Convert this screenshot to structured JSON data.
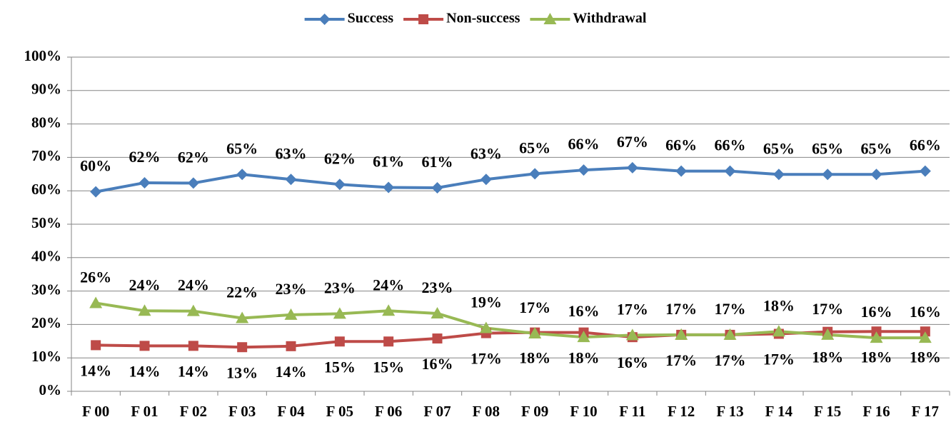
{
  "chart_data": {
    "type": "line",
    "categories": [
      "F 00",
      "F 01",
      "F 02",
      "F 03",
      "F 04",
      "F 05",
      "F 06",
      "F 07",
      "F 08",
      "F 09",
      "F 10",
      "F 11",
      "F 12",
      "F 13",
      "F 14",
      "F 15",
      "F 16",
      "F 17"
    ],
    "series": [
      {
        "name": "Success",
        "color": "#4a7ebb",
        "marker": "diamond",
        "values": [
          59.7,
          62.4,
          62.3,
          64.9,
          63.4,
          61.9,
          61.0,
          60.9,
          63.4,
          65.1,
          66.2,
          66.9,
          65.9,
          65.9,
          64.9,
          64.9,
          64.9,
          65.9
        ],
        "value_labels": [
          "60%",
          "62%",
          "62%",
          "65%",
          "63%",
          "62%",
          "61%",
          "61%",
          "63%",
          "65%",
          "66%",
          "67%",
          "66%",
          "66%",
          "65%",
          "65%",
          "65%",
          "66%"
        ]
      },
      {
        "name": "Non-success",
        "color": "#be4b48",
        "marker": "square",
        "values": [
          13.8,
          13.6,
          13.6,
          13.2,
          13.5,
          14.9,
          14.9,
          15.8,
          17.4,
          17.6,
          17.6,
          16.2,
          16.9,
          16.9,
          17.2,
          17.8,
          17.9,
          17.9
        ],
        "value_labels": [
          "14%",
          "14%",
          "14%",
          "13%",
          "14%",
          "15%",
          "15%",
          "16%",
          "17%",
          "18%",
          "18%",
          "16%",
          "17%",
          "17%",
          "17%",
          "18%",
          "18%",
          "18%"
        ]
      },
      {
        "name": "Withdrawal",
        "color": "#98b954",
        "marker": "triangle",
        "values": [
          26.4,
          24.1,
          24.0,
          21.9,
          22.9,
          23.2,
          24.1,
          23.3,
          18.9,
          17.3,
          16.2,
          16.8,
          16.9,
          16.9,
          17.9,
          16.9,
          16.0,
          16.0
        ],
        "value_labels": [
          "26%",
          "24%",
          "24%",
          "22%",
          "23%",
          "23%",
          "24%",
          "23%",
          "19%",
          "17%",
          "16%",
          "17%",
          "17%",
          "17%",
          "18%",
          "17%",
          "16%",
          "16%"
        ]
      }
    ],
    "ylim": [
      0,
      100
    ],
    "yticks": [
      {
        "value": 0,
        "label": "0%"
      },
      {
        "value": 10,
        "label": "10%"
      },
      {
        "value": 20,
        "label": "20%"
      },
      {
        "value": 30,
        "label": "30%"
      },
      {
        "value": 40,
        "label": "40%"
      },
      {
        "value": 50,
        "label": "50%"
      },
      {
        "value": 60,
        "label": "60%"
      },
      {
        "value": 70,
        "label": "70%"
      },
      {
        "value": 80,
        "label": "80%"
      },
      {
        "value": 90,
        "label": "90%"
      },
      {
        "value": 100,
        "label": "100%"
      }
    ],
    "grid": true,
    "legend": "top"
  }
}
